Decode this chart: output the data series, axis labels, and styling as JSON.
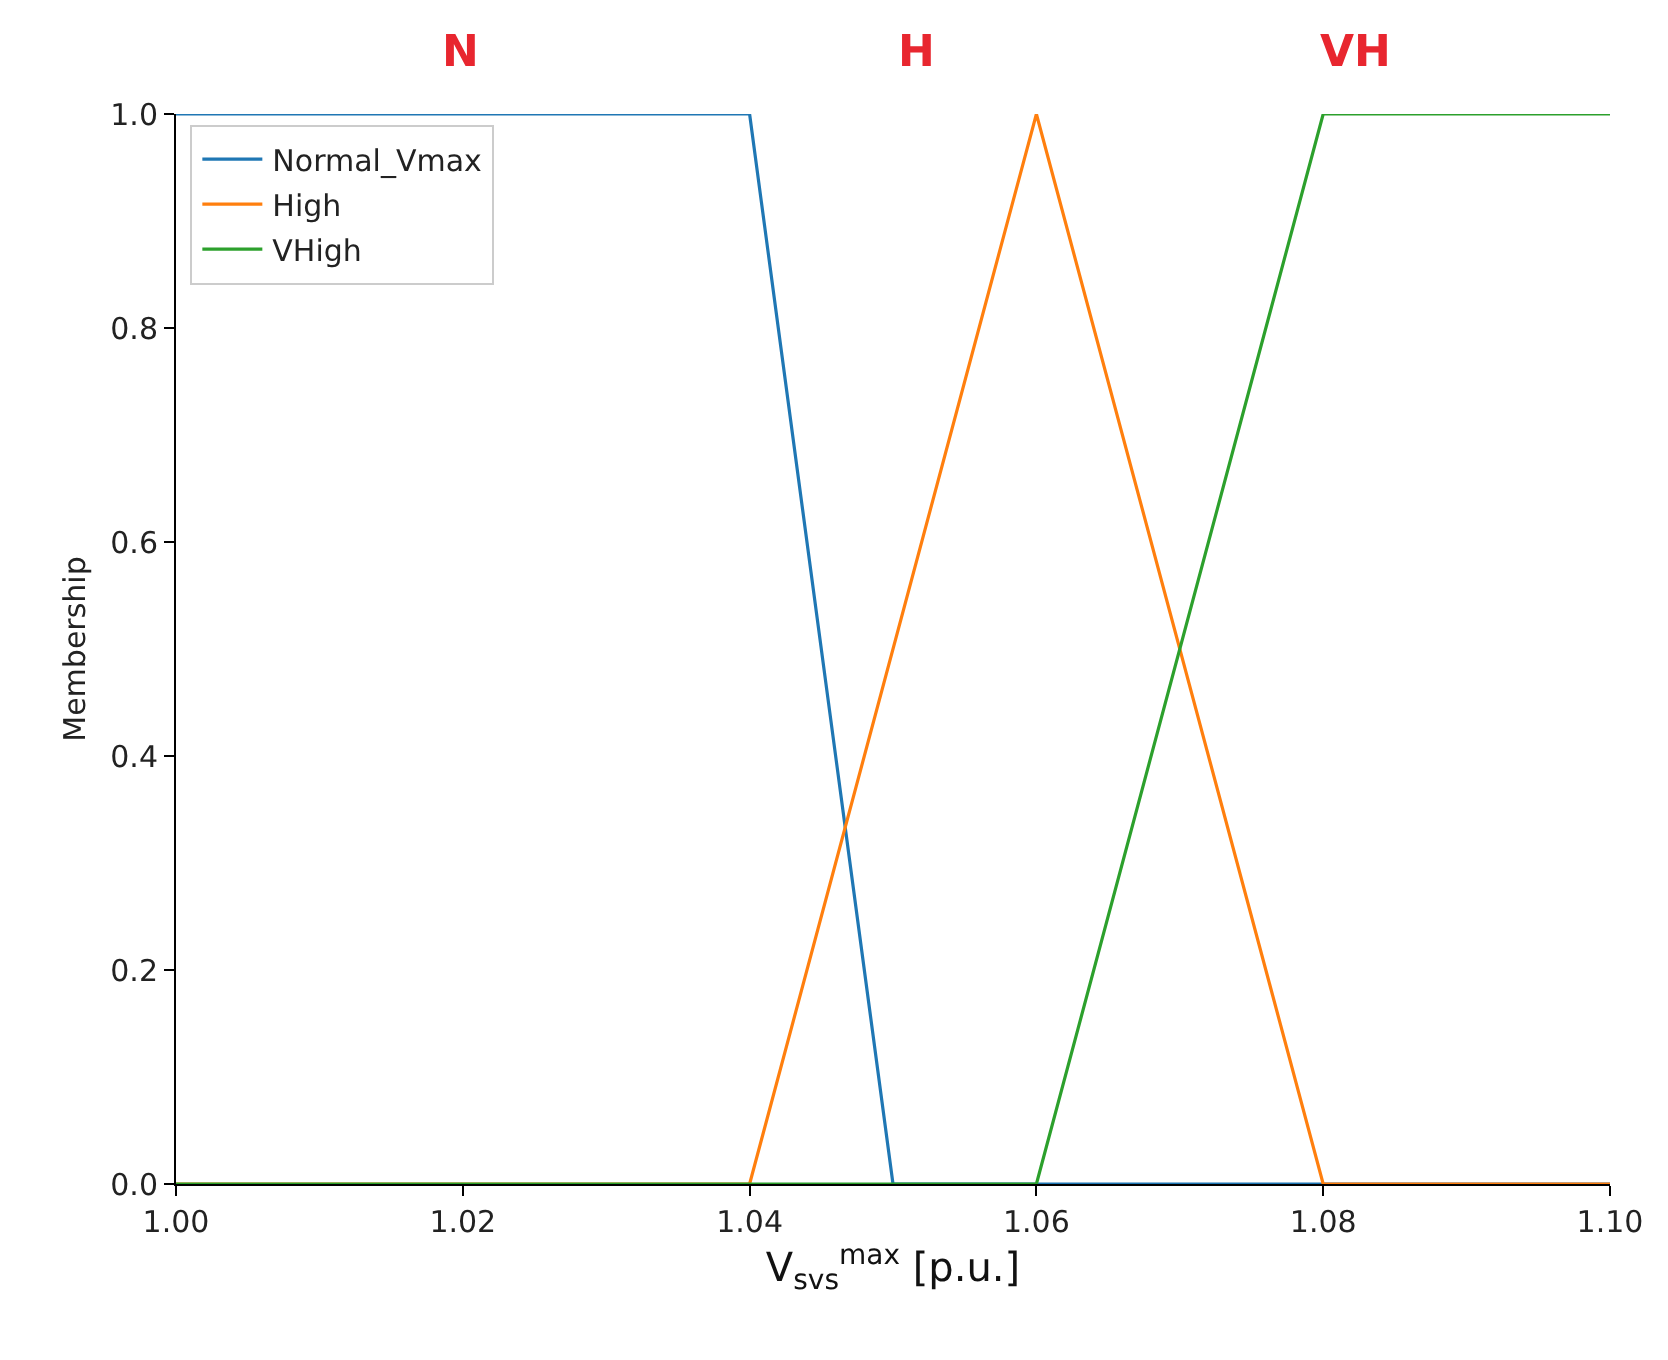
{
  "chart_data": {
    "type": "line",
    "xlabel": "V$_{svs}$$^{max}$ [p.u.]",
    "ylabel": "Membership",
    "series": [
      {
        "name": "Normal_Vmax",
        "color": "#1f77b4",
        "x": [
          1.0,
          1.04,
          1.05,
          1.1
        ],
        "values": [
          1,
          1,
          0,
          0
        ]
      },
      {
        "name": "High",
        "color": "#ff7f0e",
        "x": [
          1.0,
          1.04,
          1.06,
          1.08,
          1.1
        ],
        "values": [
          0,
          0,
          1,
          0,
          0
        ]
      },
      {
        "name": "VHigh",
        "color": "#2ca02c",
        "x": [
          1.0,
          1.06,
          1.08,
          1.1
        ],
        "values": [
          0,
          0,
          1,
          1
        ]
      }
    ],
    "annotations": [
      "N",
      "H",
      "VH"
    ],
    "xlim": [
      1.0,
      1.1
    ],
    "xticks": [
      {
        "value": 1.0,
        "label": "1.00"
      },
      {
        "value": 1.02,
        "label": "1.02"
      },
      {
        "value": 1.04,
        "label": "1.04"
      },
      {
        "value": 1.06,
        "label": "1.06"
      },
      {
        "value": 1.08,
        "label": "1.08"
      },
      {
        "value": 1.1,
        "label": "1.10"
      }
    ],
    "ylim": [
      0,
      1.0
    ],
    "yticks": [
      {
        "value": 0,
        "label": "0.0"
      },
      {
        "value": 0.2,
        "label": "0.2"
      },
      {
        "value": 0.4,
        "label": "0.4"
      },
      {
        "value": 0.6,
        "label": "0.6"
      },
      {
        "value": 0.8,
        "label": "0.8"
      },
      {
        "value": 1.0,
        "label": "1.0"
      }
    ],
    "legend": "top left",
    "marker": "none",
    "line_style": "solid"
  }
}
